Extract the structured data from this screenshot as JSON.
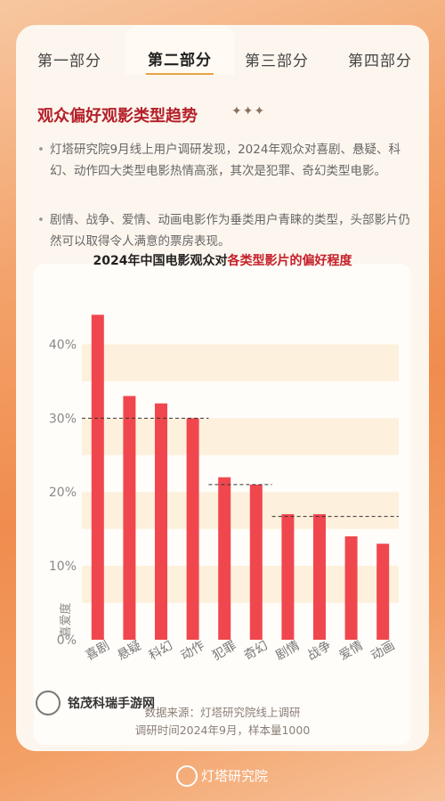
{
  "tabs": [
    "第一部分",
    "第二部分",
    "第三部分",
    "第四部分"
  ],
  "active_tab_index": 1,
  "section_title": "观众偏好观影类型趋势",
  "bullets": [
    "灯塔研究院9月线上用户调研发现，2024年观众对喜剧、悬疑、科幻、动作四大类型电影热情高涨，其次是犯罪、奇幻类型电影。",
    "剧情、战争、爱情、动画电影作为垂类用户青睐的类型，头部影片仍然可以取得令人满意的票房表现。"
  ],
  "chart_title_prefix": "2024年中国电影观众对",
  "chart_title_highlight": "各类型影片的偏好程度",
  "chart_data": {
    "type": "bar",
    "title": "2024年中国电影观众对各类型影片的偏好程度",
    "categories": [
      "喜剧",
      "悬疑",
      "科幻",
      "动作",
      "犯罪",
      "奇幻",
      "剧情",
      "战争",
      "爱情",
      "动画"
    ],
    "values": [
      44,
      33,
      32,
      30,
      22,
      21,
      17,
      17,
      14,
      13
    ],
    "ylabel": "喜爱度",
    "ylim": [
      0,
      45
    ],
    "yticks": [
      0,
      10,
      20,
      30,
      40
    ],
    "ytick_labels": [
      "0%",
      "10%",
      "20%",
      "30%",
      "40%"
    ],
    "reference_lines": [
      {
        "value": 30,
        "from": "喜剧",
        "to": "动作"
      },
      {
        "value": 21,
        "from": "犯罪",
        "to": "奇幻"
      },
      {
        "value": 16.7,
        "from": "剧情",
        "to": "动画"
      }
    ],
    "bar_color": "#f0474f",
    "band_color": "#fdf0dc"
  },
  "source_lines": [
    "数据来源：灯塔研究院线上调研",
    "调研时间2024年9月，样本量1000"
  ],
  "watermark": "铭茂科瑞手游网",
  "footer_logo": "灯塔研究院",
  "colors": {
    "accent_red": "#b4202a",
    "tab_underline": "#e8a244"
  }
}
